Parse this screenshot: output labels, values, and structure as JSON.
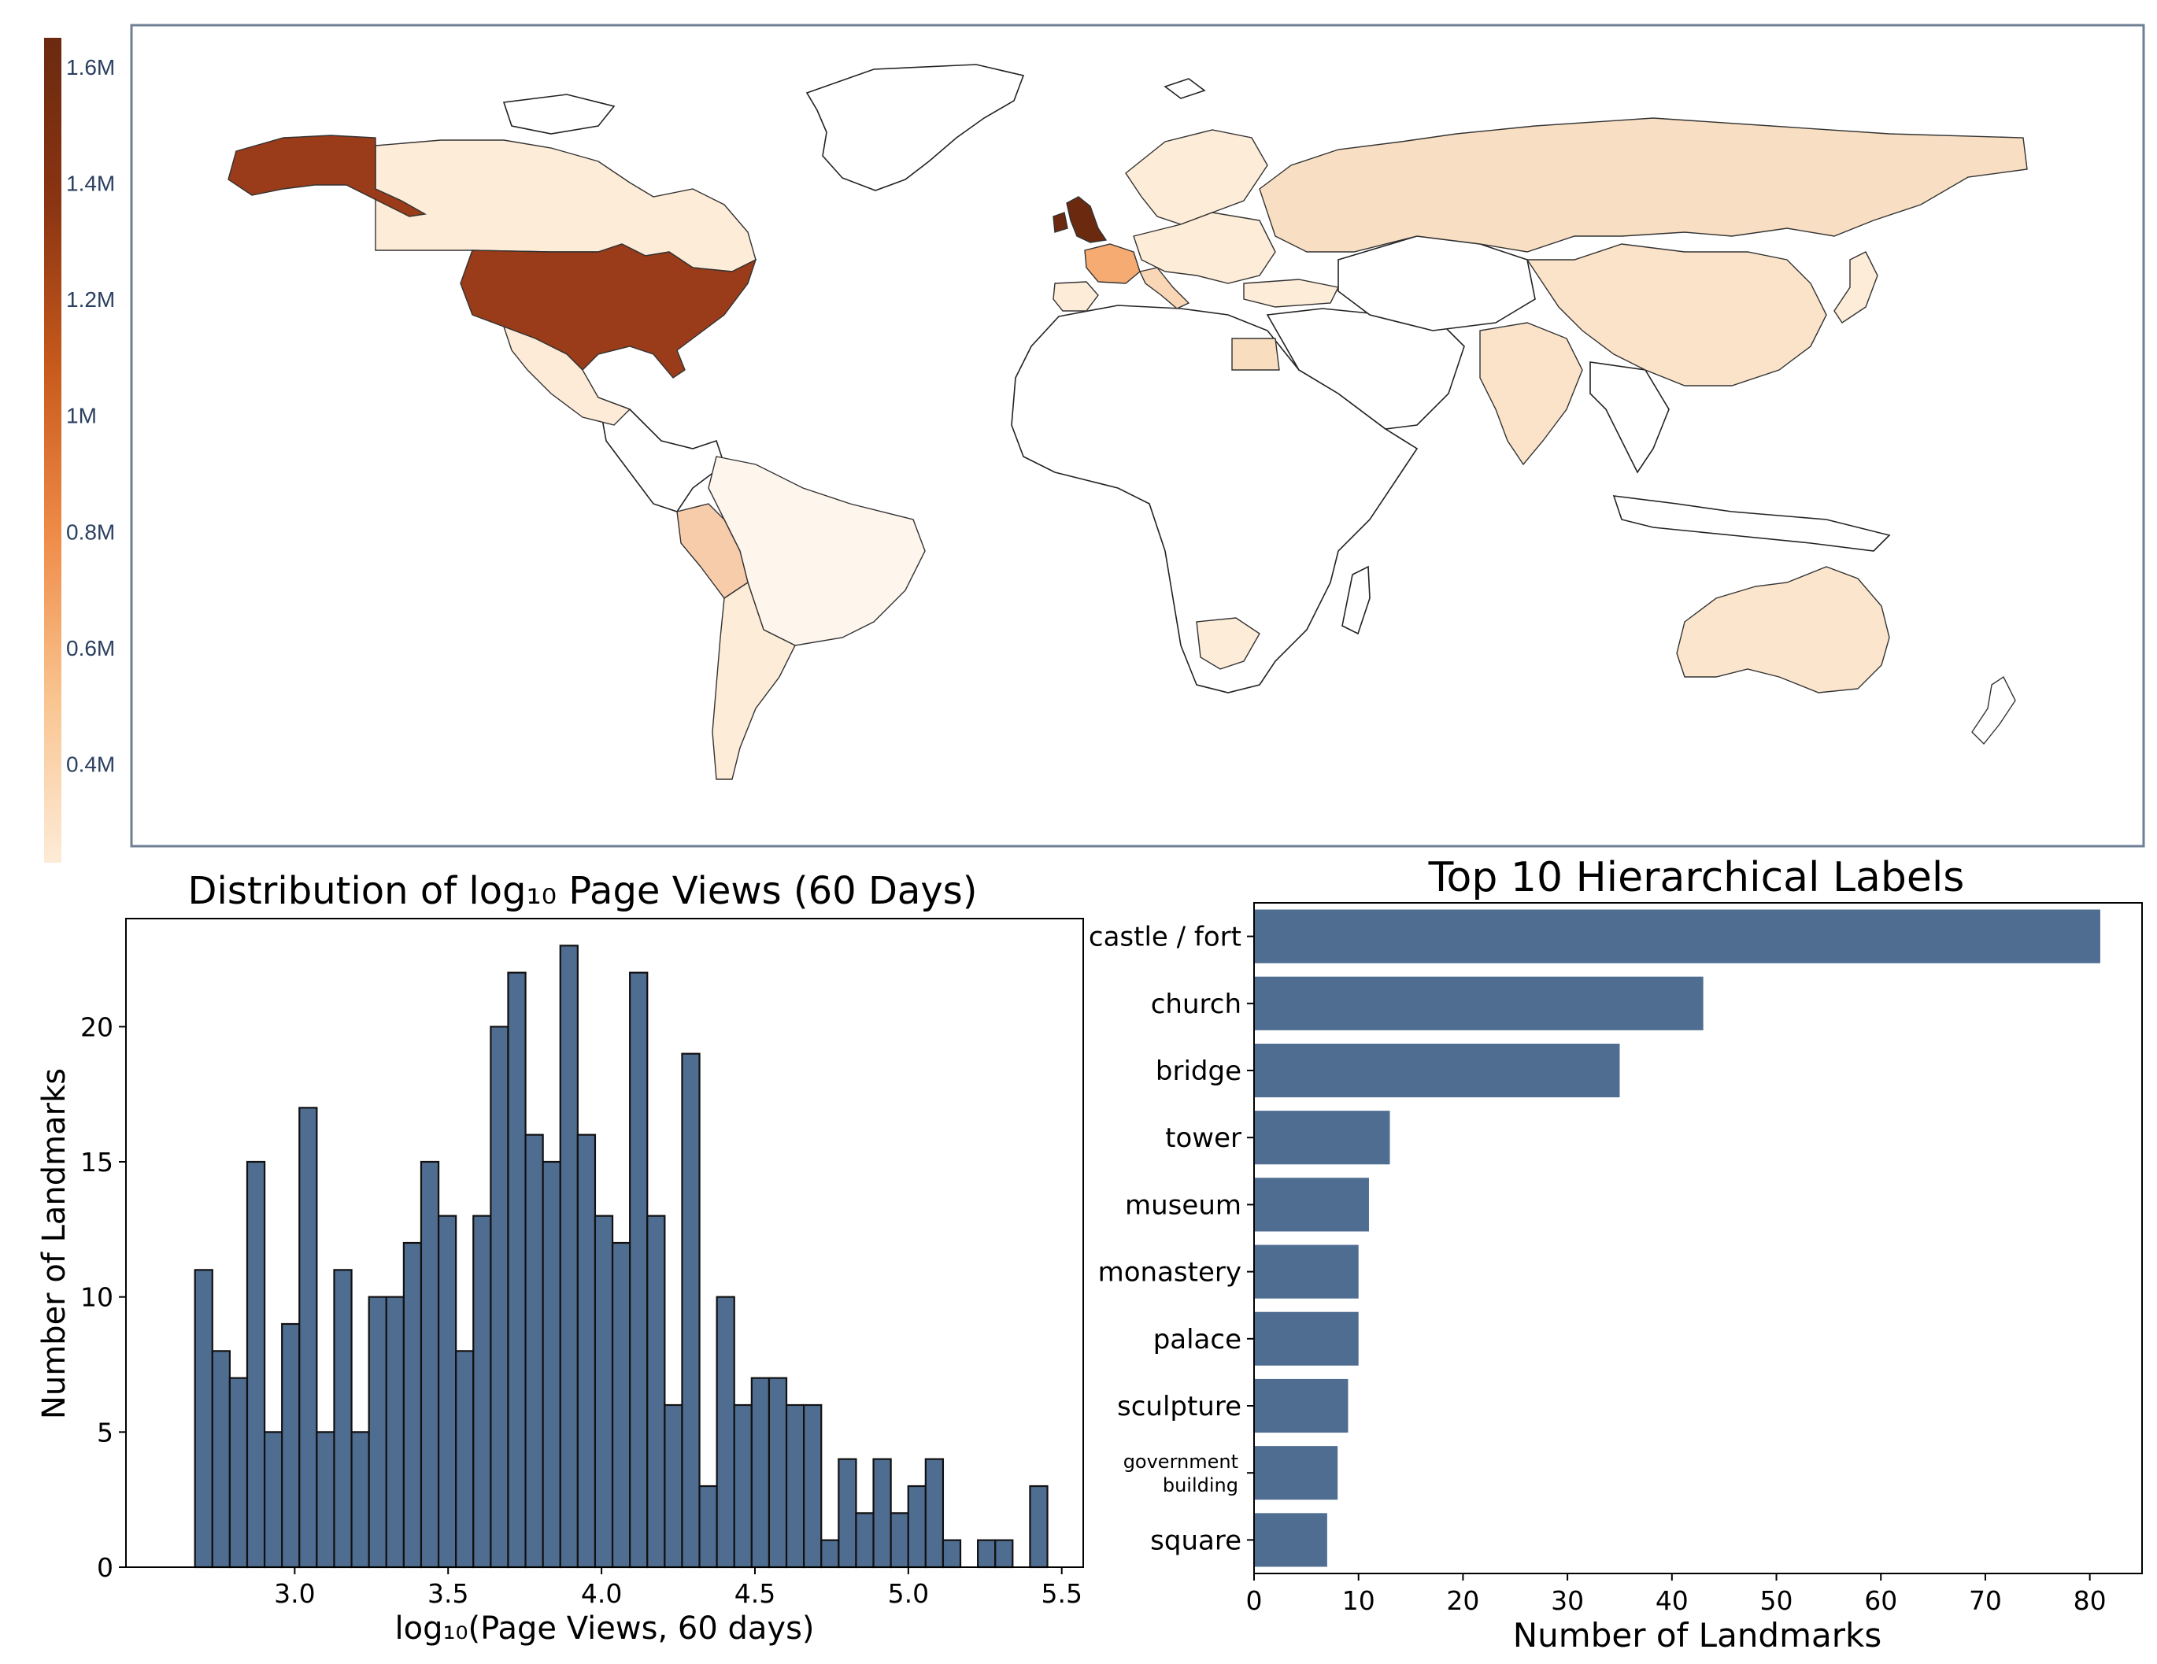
{
  "map": {
    "colorbar_ticks": [
      "1.6M",
      "1.4M",
      "1.2M",
      "1M",
      "0.8M",
      "0.6M",
      "0.4M"
    ],
    "colorbar_tick_values": [
      1600000,
      1400000,
      1200000,
      1000000,
      800000,
      600000,
      400000
    ],
    "colorbar_range": [
      230000,
      1650000
    ],
    "colorscale": [
      "#fdebd7",
      "#f9c48f",
      "#ef8a47",
      "#c75a1c",
      "#8a3412",
      "#6b2a10"
    ],
    "countries": [
      {
        "name": "United States",
        "value": 1400000
      },
      {
        "name": "Alaska",
        "value": 1400000
      },
      {
        "name": "United Kingdom",
        "value": 1620000
      },
      {
        "name": "France",
        "value": 800000
      },
      {
        "name": "Italy",
        "value": 330000
      },
      {
        "name": "Peru",
        "value": 450000
      },
      {
        "name": "Egypt",
        "value": 400000
      },
      {
        "name": "Canada",
        "value": 280000
      },
      {
        "name": "Russia",
        "value": 330000
      },
      {
        "name": "China",
        "value": 290000
      },
      {
        "name": "India",
        "value": 330000
      },
      {
        "name": "Australia",
        "value": 300000
      },
      {
        "name": "Brazil",
        "value": 260000
      },
      {
        "name": "Argentina",
        "value": 270000
      },
      {
        "name": "Mexico",
        "value": 290000
      },
      {
        "name": "South Africa",
        "value": 270000
      },
      {
        "name": "Spain",
        "value": 300000
      },
      {
        "name": "Germany",
        "value": 280000
      },
      {
        "name": "Japan",
        "value": 280000
      },
      {
        "name": "Turkey",
        "value": 280000
      }
    ]
  },
  "chart_data": [
    {
      "type": "bar",
      "title": "Distribution of log₁₀ Page Views (60 Days)",
      "xlabel": "log₁₀(Page Views, 60 days)",
      "ylabel": "Number of Landmarks",
      "bin_start": 2.675,
      "bin_width": 0.0567,
      "values": [
        11,
        8,
        7,
        15,
        5,
        9,
        17,
        5,
        11,
        5,
        10,
        10,
        12,
        15,
        13,
        8,
        13,
        20,
        22,
        16,
        15,
        23,
        16,
        13,
        12,
        22,
        13,
        6,
        19,
        3,
        10,
        6,
        7,
        7,
        6,
        6,
        1,
        4,
        2,
        4,
        2,
        3,
        4,
        1,
        0,
        1,
        1,
        0,
        3
      ],
      "xlim": [
        2.45,
        5.57
      ],
      "ylim": [
        0,
        24
      ],
      "xticks": [
        3.0,
        3.5,
        4.0,
        4.5,
        5.0,
        5.5
      ],
      "xtick_labels": [
        "3.0",
        "3.5",
        "4.0",
        "4.5",
        "5.0",
        "5.5"
      ],
      "yticks": [
        0,
        5,
        10,
        15,
        20
      ],
      "ytick_labels": [
        "0",
        "5",
        "10",
        "15",
        "20"
      ],
      "color": "#4f6d91"
    },
    {
      "type": "bar",
      "orientation": "horizontal",
      "title": "Top 10 Hierarchical Labels",
      "xlabel": "Number of Landmarks",
      "ylabel": "",
      "categories": [
        "castle / fort",
        "church",
        "bridge",
        "tower",
        "museum",
        "monastery",
        "palace",
        "sculpture",
        "government building",
        "square"
      ],
      "category_lines": [
        [
          "castle / fort"
        ],
        [
          "church"
        ],
        [
          "bridge"
        ],
        [
          "tower"
        ],
        [
          "museum"
        ],
        [
          "monastery"
        ],
        [
          "palace"
        ],
        [
          "sculpture"
        ],
        [
          "government",
          "building"
        ],
        [
          "square"
        ]
      ],
      "values": [
        81,
        43,
        35,
        13,
        11,
        10,
        10,
        9,
        8,
        7
      ],
      "xlim": [
        0,
        85
      ],
      "xticks": [
        0,
        10,
        20,
        30,
        40,
        50,
        60,
        70,
        80
      ],
      "xtick_labels": [
        "0",
        "10",
        "20",
        "30",
        "40",
        "50",
        "60",
        "70",
        "80"
      ],
      "color": "#4f6d91"
    }
  ]
}
